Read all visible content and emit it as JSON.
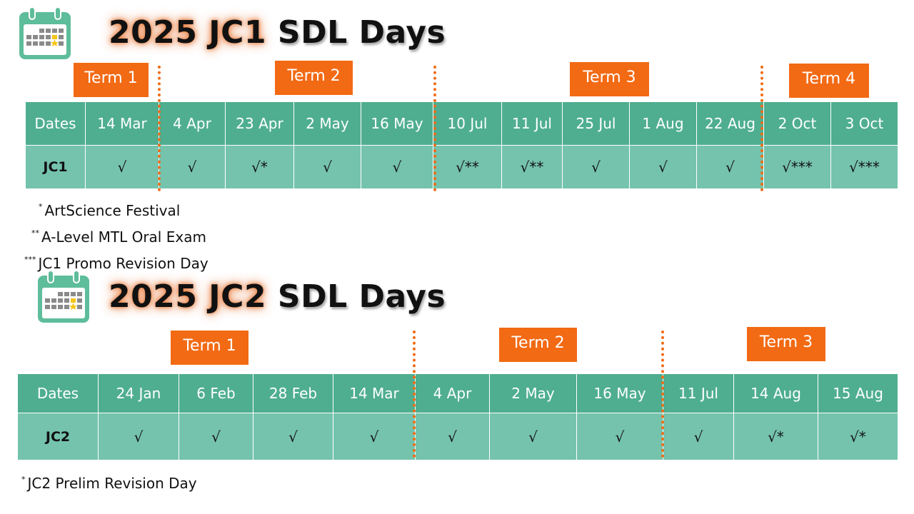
{
  "colors": {
    "accent": "#f26a14",
    "table_header": "#4fae90",
    "table_row": "#75c3ad",
    "icon": "#5ebd9b"
  },
  "jc1": {
    "title_highlight": "2025 JC1",
    "title_rest": "SDL Days",
    "icon": "calendar-icon",
    "terms": [
      "Term 1",
      "Term 2",
      "Term 3",
      "Term 4"
    ],
    "header_label": "Dates",
    "row_label": "JC1",
    "dates": [
      "14 Mar",
      "4 Apr",
      "23 Apr",
      "2 May",
      "16 May",
      "10 Jul",
      "11 Jul",
      "25 Jul",
      "1 Aug",
      "22 Aug",
      "2 Oct",
      "3 Oct"
    ],
    "marks": [
      "√",
      "√",
      "√*",
      "√",
      "√",
      "√**",
      "√**",
      "√",
      "√",
      "√",
      "√***",
      "√***"
    ],
    "notes": [
      {
        "marker": "*",
        "text": "ArtScience Festival"
      },
      {
        "marker": "**",
        "text": "A-Level MTL Oral Exam"
      },
      {
        "marker": "***",
        "text": "JC1 Promo Revision Day"
      }
    ]
  },
  "jc2": {
    "title_highlight": "2025 JC2",
    "title_rest": "SDL Days",
    "icon": "calendar-icon",
    "terms": [
      "Term 1",
      "Term 2",
      "Term 3"
    ],
    "header_label": "Dates",
    "row_label": "JC2",
    "dates": [
      "24 Jan",
      "6 Feb",
      "28 Feb",
      "14 Mar",
      "4 Apr",
      "2 May",
      "16 May",
      "11 Jul",
      "14 Aug",
      "15 Aug"
    ],
    "marks": [
      "√",
      "√",
      "√",
      "√",
      "√",
      "√",
      "√",
      "√",
      "√*",
      "√*"
    ],
    "notes": [
      {
        "marker": "*",
        "text": "JC2 Prelim Revision Day"
      }
    ]
  }
}
